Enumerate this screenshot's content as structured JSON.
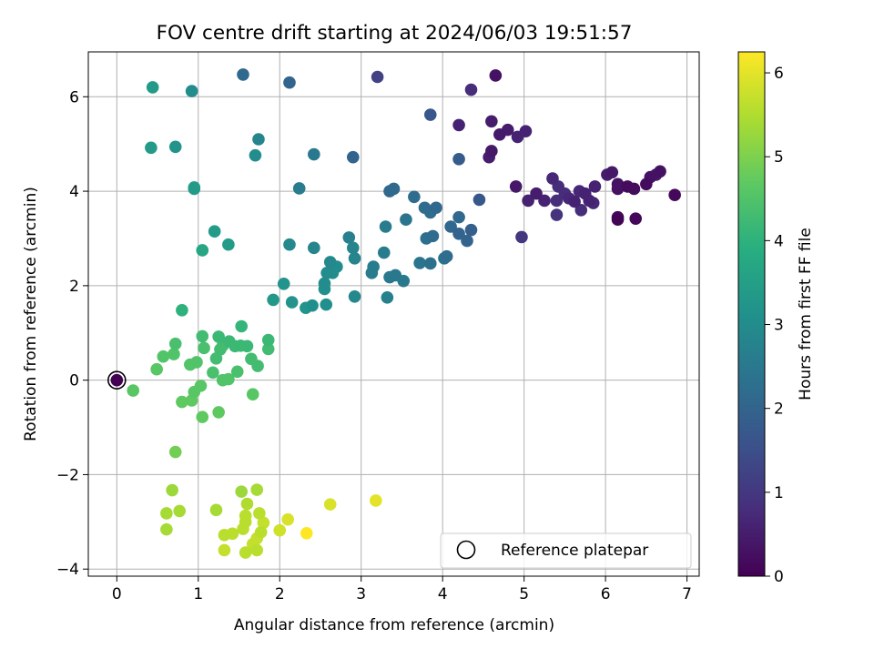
{
  "chart_data": {
    "type": "scatter",
    "title": "FOV centre drift starting at 2024/06/03 19:51:57",
    "xlabel": "Angular distance from reference (arcmin)",
    "ylabel": "Rotation from reference (arcmin)",
    "xlim": [
      -0.35,
      7.15
    ],
    "ylim": [
      -4.15,
      6.95
    ],
    "x_ticks": [
      "0",
      "1",
      "2",
      "3",
      "4",
      "5",
      "6",
      "7"
    ],
    "y_ticks": [
      "−4",
      "−2",
      "0",
      "2",
      "4",
      "6"
    ],
    "grid": true,
    "legend": {
      "placement": "bottom-right",
      "entries": [
        "Reference platepar"
      ]
    },
    "reference_point": {
      "x": 0.0,
      "y": 0.0
    },
    "colorbar": {
      "label": "Hours from first FF file",
      "colormap": "viridis",
      "range": [
        0,
        6.25
      ],
      "ticks": [
        "0",
        "1",
        "2",
        "3",
        "4",
        "5",
        "6"
      ]
    },
    "point_columns": [
      "x",
      "y",
      "hours"
    ],
    "points": [
      [
        0.0,
        0.0,
        0.0
      ],
      [
        4.65,
        6.45,
        0.3
      ],
      [
        4.35,
        6.15,
        0.8
      ],
      [
        3.2,
        6.42,
        1.2
      ],
      [
        4.2,
        5.4,
        0.6
      ],
      [
        4.6,
        5.48,
        0.5
      ],
      [
        4.7,
        5.2,
        0.45
      ],
      [
        4.8,
        5.3,
        0.5
      ],
      [
        4.92,
        5.15,
        0.6
      ],
      [
        5.02,
        5.27,
        0.6
      ],
      [
        4.6,
        4.85,
        0.4
      ],
      [
        4.57,
        4.72,
        0.5
      ],
      [
        4.9,
        4.1,
        0.4
      ],
      [
        5.05,
        3.8,
        0.6
      ],
      [
        4.97,
        3.03,
        1.0
      ],
      [
        5.15,
        3.95,
        0.5
      ],
      [
        5.25,
        3.8,
        0.6
      ],
      [
        5.35,
        4.27,
        0.7
      ],
      [
        5.42,
        4.1,
        0.8
      ],
      [
        5.4,
        3.8,
        0.8
      ],
      [
        5.4,
        3.5,
        0.9
      ],
      [
        5.5,
        3.95,
        0.8
      ],
      [
        5.55,
        3.85,
        0.7
      ],
      [
        5.62,
        3.78,
        0.6
      ],
      [
        5.68,
        4.0,
        0.7
      ],
      [
        5.7,
        3.6,
        0.8
      ],
      [
        5.75,
        3.95,
        0.6
      ],
      [
        5.8,
        3.8,
        0.6
      ],
      [
        5.85,
        3.75,
        0.7
      ],
      [
        5.87,
        4.1,
        0.6
      ],
      [
        6.02,
        4.35,
        0.5
      ],
      [
        6.08,
        4.4,
        0.4
      ],
      [
        6.15,
        4.15,
        0.3
      ],
      [
        6.15,
        4.05,
        0.3
      ],
      [
        6.15,
        3.45,
        0.1
      ],
      [
        6.15,
        3.4,
        0.05
      ],
      [
        6.27,
        4.1,
        0.2
      ],
      [
        6.35,
        4.05,
        0.2
      ],
      [
        6.37,
        3.42,
        0.1
      ],
      [
        6.5,
        4.15,
        0.2
      ],
      [
        6.55,
        4.3,
        0.3
      ],
      [
        6.62,
        4.35,
        0.4
      ],
      [
        6.67,
        4.42,
        0.3
      ],
      [
        6.85,
        3.92,
        0.15
      ],
      [
        1.55,
        6.47,
        2.1
      ],
      [
        2.12,
        6.3,
        2.0
      ],
      [
        2.9,
        4.72,
        2.0
      ],
      [
        3.85,
        5.62,
        1.7
      ],
      [
        4.2,
        4.68,
        1.8
      ],
      [
        4.45,
        3.82,
        1.7
      ],
      [
        4.35,
        3.18,
        1.9
      ],
      [
        4.3,
        2.95,
        2.0
      ],
      [
        4.2,
        3.1,
        2.0
      ],
      [
        4.2,
        3.45,
        2.1
      ],
      [
        4.1,
        3.25,
        2.1
      ],
      [
        4.05,
        2.62,
        2.2
      ],
      [
        4.02,
        2.58,
        2.3
      ],
      [
        3.92,
        3.65,
        2.1
      ],
      [
        3.85,
        3.55,
        2.2
      ],
      [
        3.88,
        3.05,
        2.2
      ],
      [
        3.85,
        2.47,
        2.3
      ],
      [
        3.8,
        3.0,
        2.3
      ],
      [
        3.78,
        3.65,
        2.2
      ],
      [
        3.72,
        2.48,
        2.4
      ],
      [
        3.65,
        3.88,
        2.2
      ],
      [
        3.55,
        3.4,
        2.4
      ],
      [
        3.4,
        4.05,
        2.1
      ],
      [
        3.35,
        4.0,
        2.1
      ],
      [
        3.42,
        2.22,
        2.5
      ],
      [
        3.35,
        2.18,
        2.5
      ],
      [
        3.32,
        1.75,
        2.7
      ],
      [
        3.3,
        3.25,
        2.6
      ],
      [
        3.28,
        2.7,
        2.6
      ],
      [
        3.52,
        2.1,
        2.5
      ],
      [
        3.15,
        2.4,
        2.6
      ],
      [
        3.13,
        2.27,
        2.6
      ],
      [
        2.92,
        2.58,
        2.8
      ],
      [
        2.9,
        2.8,
        2.8
      ],
      [
        2.92,
        1.77,
        2.9
      ],
      [
        2.85,
        3.02,
        2.7
      ],
      [
        2.7,
        2.4,
        3.0
      ],
      [
        2.65,
        2.27,
        3.0
      ],
      [
        2.62,
        2.5,
        2.9
      ],
      [
        2.58,
        2.27,
        3.0
      ],
      [
        2.55,
        2.05,
        3.0
      ],
      [
        2.55,
        1.93,
        3.1
      ],
      [
        2.57,
        1.6,
        3.1
      ],
      [
        2.42,
        2.8,
        2.8
      ],
      [
        2.42,
        4.78,
        2.5
      ],
      [
        2.4,
        1.58,
        3.1
      ],
      [
        2.32,
        1.53,
        3.2
      ],
      [
        2.24,
        4.06,
        2.6
      ],
      [
        2.15,
        1.65,
        3.2
      ],
      [
        2.12,
        2.87,
        2.9
      ],
      [
        2.05,
        2.04,
        3.2
      ],
      [
        1.92,
        1.7,
        3.3
      ],
      [
        1.74,
        5.1,
        2.8
      ],
      [
        1.7,
        4.76,
        3.0
      ],
      [
        1.37,
        2.87,
        3.4
      ],
      [
        1.2,
        3.15,
        3.4
      ],
      [
        0.95,
        4.05,
        3.4
      ],
      [
        0.95,
        4.08,
        3.4
      ],
      [
        0.92,
        6.12,
        3.0
      ],
      [
        0.72,
        4.94,
        3.2
      ],
      [
        0.44,
        6.2,
        3.4
      ],
      [
        0.42,
        4.92,
        3.4
      ],
      [
        1.05,
        2.75,
        3.7
      ],
      [
        0.8,
        1.48,
        4.0
      ],
      [
        1.53,
        1.14,
        4.1
      ],
      [
        1.25,
        0.92,
        4.2
      ],
      [
        1.38,
        0.82,
        4.2
      ],
      [
        1.3,
        0.73,
        4.3
      ],
      [
        1.45,
        0.72,
        4.2
      ],
      [
        1.6,
        0.72,
        4.2
      ],
      [
        1.52,
        0.73,
        4.2
      ],
      [
        1.27,
        0.65,
        4.3
      ],
      [
        1.22,
        0.46,
        4.3
      ],
      [
        1.05,
        0.93,
        4.3
      ],
      [
        1.07,
        0.68,
        4.4
      ],
      [
        1.18,
        0.16,
        4.4
      ],
      [
        1.65,
        0.45,
        4.3
      ],
      [
        1.73,
        0.3,
        4.3
      ],
      [
        1.86,
        0.85,
        4.2
      ],
      [
        1.86,
        0.66,
        4.3
      ],
      [
        1.48,
        0.18,
        4.4
      ],
      [
        0.98,
        0.38,
        4.5
      ],
      [
        0.9,
        0.33,
        4.5
      ],
      [
        0.72,
        0.77,
        4.4
      ],
      [
        0.7,
        0.55,
        4.5
      ],
      [
        0.57,
        0.5,
        4.5
      ],
      [
        0.49,
        0.23,
        4.6
      ],
      [
        1.3,
        0.0,
        4.5
      ],
      [
        1.37,
        0.02,
        4.5
      ],
      [
        1.03,
        -0.12,
        4.6
      ],
      [
        0.95,
        -0.25,
        4.6
      ],
      [
        0.92,
        -0.43,
        4.7
      ],
      [
        0.8,
        -0.46,
        4.7
      ],
      [
        1.67,
        -0.3,
        4.6
      ],
      [
        1.25,
        -0.68,
        4.7
      ],
      [
        1.05,
        -0.78,
        4.7
      ],
      [
        0.72,
        -1.52,
        4.9
      ],
      [
        0.2,
        -0.22,
        4.6
      ],
      [
        0.68,
        -2.33,
        5.3
      ],
      [
        0.77,
        -2.77,
        5.4
      ],
      [
        0.61,
        -2.82,
        5.4
      ],
      [
        0.61,
        -3.16,
        5.4
      ],
      [
        1.22,
        -2.75,
        5.4
      ],
      [
        1.53,
        -2.36,
        5.3
      ],
      [
        1.72,
        -2.32,
        5.4
      ],
      [
        1.6,
        -2.62,
        5.5
      ],
      [
        1.58,
        -2.87,
        5.6
      ],
      [
        1.58,
        -3.0,
        5.6
      ],
      [
        1.55,
        -3.15,
        5.6
      ],
      [
        1.75,
        -2.82,
        5.6
      ],
      [
        1.8,
        -3.02,
        5.7
      ],
      [
        1.77,
        -3.22,
        5.6
      ],
      [
        1.72,
        -3.35,
        5.7
      ],
      [
        1.67,
        -3.47,
        5.7
      ],
      [
        1.72,
        -3.6,
        5.6
      ],
      [
        1.58,
        -3.65,
        5.6
      ],
      [
        1.42,
        -3.25,
        5.6
      ],
      [
        1.32,
        -3.28,
        5.6
      ],
      [
        1.32,
        -3.6,
        5.7
      ],
      [
        2.0,
        -3.18,
        5.8
      ],
      [
        2.1,
        -2.95,
        5.9
      ],
      [
        2.62,
        -2.63,
        5.9
      ],
      [
        3.18,
        -2.55,
        6.0
      ],
      [
        2.33,
        -3.24,
        6.25
      ]
    ]
  }
}
